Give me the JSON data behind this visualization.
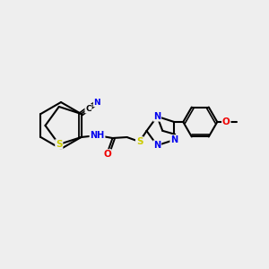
{
  "bg_color": "#eeeeee",
  "atom_colors": {
    "C": "#000000",
    "N": "#0000ee",
    "O": "#ee0000",
    "S": "#cccc00",
    "H": "#555555"
  },
  "bond_color": "#000000",
  "figsize": [
    3.0,
    3.0
  ],
  "dpi": 100,
  "xlim": [
    0,
    300
  ],
  "ylim": [
    0,
    300
  ]
}
